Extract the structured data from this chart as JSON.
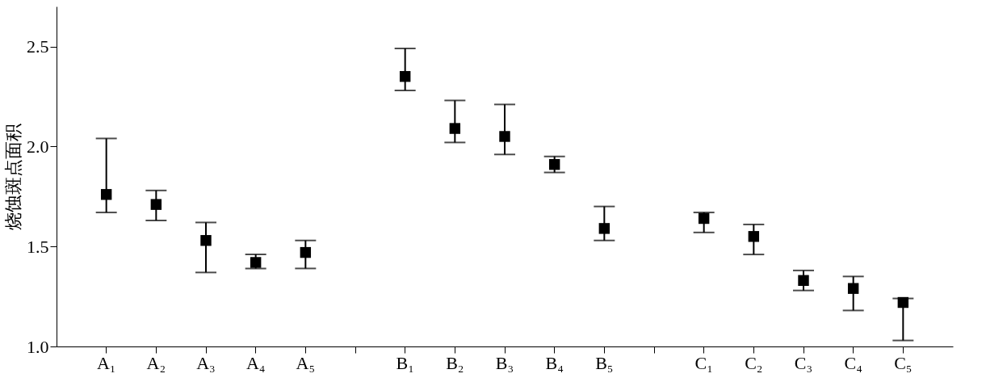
{
  "chart_data": {
    "type": "scatter",
    "ylabel": "烧蚀斑点面积",
    "categories": [
      "A₁",
      "A₂",
      "A₃",
      "A₄",
      "A₅",
      null,
      "B₁",
      "B₂",
      "B₃",
      "B₄",
      "B₅",
      null,
      "C₁",
      "C₂",
      "C₃",
      "C₄",
      "C₅"
    ],
    "series": [
      {
        "color": "#000000",
        "values": [
          1.76,
          1.71,
          1.53,
          1.42,
          1.47,
          null,
          2.35,
          2.09,
          2.05,
          1.91,
          1.59,
          null,
          1.64,
          1.55,
          1.33,
          1.29,
          1.22
        ],
        "errors": [
          [
            1.67,
            2.04
          ],
          [
            1.63,
            1.78
          ],
          [
            1.37,
            1.62
          ],
          [
            1.39,
            1.46
          ],
          [
            1.39,
            1.53
          ],
          null,
          [
            2.28,
            2.49
          ],
          [
            2.02,
            2.23
          ],
          [
            1.96,
            2.21
          ],
          [
            1.87,
            1.95
          ],
          [
            1.53,
            1.7
          ],
          null,
          [
            1.57,
            1.67
          ],
          [
            1.46,
            1.61
          ],
          [
            1.28,
            1.38
          ],
          [
            1.18,
            1.35
          ],
          [
            1.03,
            1.24
          ]
        ]
      }
    ],
    "ylim": [
      1.0,
      2.7
    ],
    "yticks": [
      {
        "value": 1.0,
        "label": "1.0"
      },
      {
        "value": 1.5,
        "label": "1.5"
      },
      {
        "value": 2.0,
        "label": "2.0"
      },
      {
        "value": 2.5,
        "label": "2.5"
      }
    ],
    "marker": "square",
    "grid": false
  }
}
